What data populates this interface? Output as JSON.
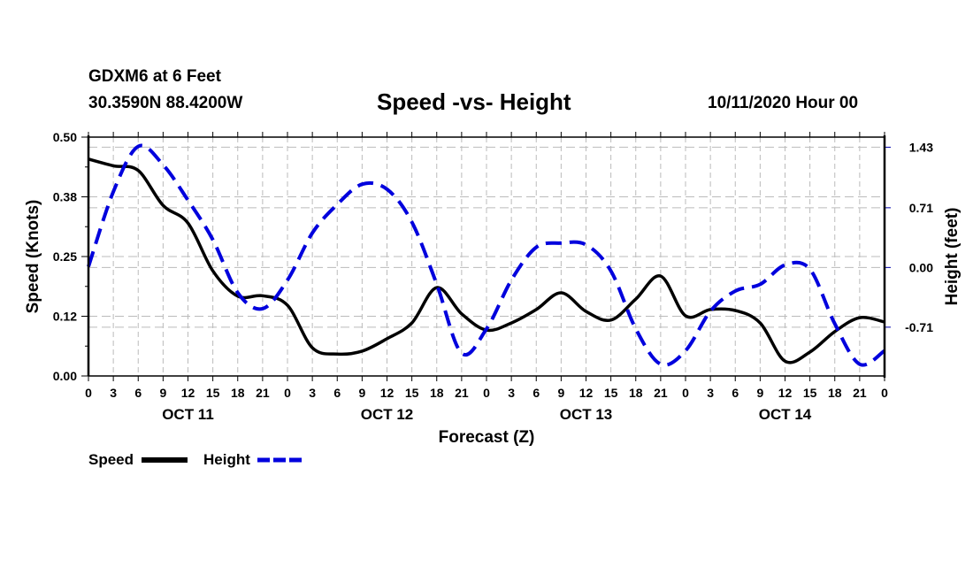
{
  "header": {
    "station": "GDXM6 at 6 Feet",
    "coords": "30.3590N 88.4200W",
    "title": "Speed -vs- Height",
    "datetime": "10/11/2020 Hour 00"
  },
  "colors": {
    "speed": "#000000",
    "height": "#0000dd",
    "grid": "#bbbbbb"
  },
  "chart_data": {
    "type": "line",
    "title": "Speed -vs- Height",
    "xlabel": "Forecast (Z)",
    "ylabel": "Speed (Knots)",
    "y2label": "Height (feet)",
    "xlim": [
      0,
      96
    ],
    "ylim": [
      0,
      0.5
    ],
    "y2lim": [
      -1.29,
      1.55
    ],
    "grid": true,
    "legend_position": "bottom-left",
    "x_tick_labels": [
      "0",
      "3",
      "6",
      "9",
      "12",
      "15",
      "18",
      "21",
      "0",
      "3",
      "6",
      "9",
      "12",
      "15",
      "18",
      "21",
      "0",
      "3",
      "6",
      "9",
      "12",
      "15",
      "18",
      "21",
      "0",
      "3",
      "6",
      "9",
      "12",
      "15",
      "18",
      "21",
      "0"
    ],
    "day_labels": [
      {
        "label": "OCT 11",
        "hour": 12
      },
      {
        "label": "OCT 12",
        "hour": 36
      },
      {
        "label": "OCT 13",
        "hour": 60
      },
      {
        "label": "OCT 14",
        "hour": 84
      }
    ],
    "y_ticks": [
      {
        "value": 0.0,
        "label": "0.00"
      },
      {
        "value": 0.125,
        "label": "0.12"
      },
      {
        "value": 0.25,
        "label": "0.25"
      },
      {
        "value": 0.375,
        "label": "0.38"
      },
      {
        "value": 0.5,
        "label": "0.50"
      }
    ],
    "y2_ticks": [
      {
        "value": -0.71,
        "label": "-0.71"
      },
      {
        "value": 0.0,
        "label": "0.00"
      },
      {
        "value": 0.71,
        "label": "0.71"
      },
      {
        "value": 1.43,
        "label": "1.43"
      }
    ],
    "x": [
      0,
      3,
      6,
      9,
      12,
      15,
      18,
      21,
      24,
      27,
      30,
      33,
      36,
      39,
      42,
      45,
      48,
      51,
      54,
      57,
      60,
      63,
      66,
      69,
      72,
      75,
      78,
      81,
      84,
      87,
      90,
      93,
      96
    ],
    "series": [
      {
        "name": "Speed",
        "axis": "left",
        "style": "solid",
        "values": [
          0.454,
          0.44,
          0.43,
          0.357,
          0.32,
          0.22,
          0.167,
          0.168,
          0.148,
          0.059,
          0.046,
          0.052,
          0.078,
          0.111,
          0.185,
          0.13,
          0.096,
          0.111,
          0.139,
          0.174,
          0.135,
          0.117,
          0.161,
          0.209,
          0.126,
          0.139,
          0.137,
          0.111,
          0.031,
          0.05,
          0.093,
          0.122,
          0.113
        ]
      },
      {
        "name": "Height",
        "axis": "right",
        "style": "dashed",
        "values": [
          0.01,
          0.9,
          1.44,
          1.22,
          0.8,
          0.33,
          -0.3,
          -0.49,
          -0.15,
          0.41,
          0.75,
          0.99,
          0.93,
          0.54,
          -0.2,
          -1.02,
          -0.73,
          -0.15,
          0.24,
          0.29,
          0.27,
          -0.04,
          -0.73,
          -1.15,
          -0.99,
          -0.52,
          -0.28,
          -0.2,
          0.03,
          -0.02,
          -0.67,
          -1.15,
          -0.99
        ]
      }
    ],
    "legend": [
      {
        "label": "Speed",
        "style": "solid"
      },
      {
        "label": "Height",
        "style": "dashed"
      }
    ]
  }
}
